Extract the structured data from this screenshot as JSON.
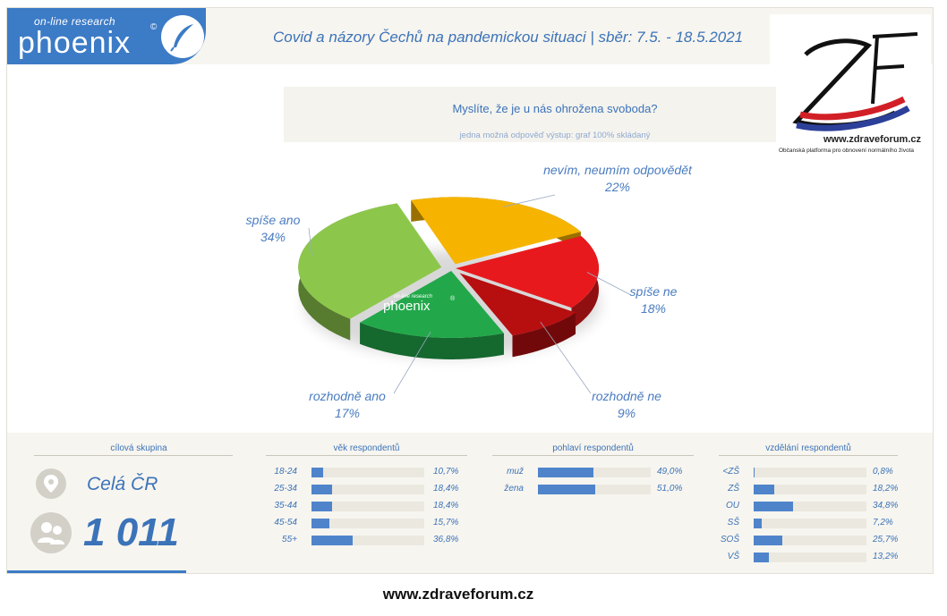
{
  "header": {
    "logo_small": "on-line research",
    "logo_big": "phoenix",
    "logo_copy": "©",
    "survey_title": "Covid a názory Čechů na pandemickou situaci  |  sběr: 7.5. - 18.5.2021"
  },
  "zf_logo": {
    "letters": "ZF",
    "url": "www.zdraveforum.cz",
    "subtitle": "Občanská platforma pro obnovení normálního života"
  },
  "question": {
    "text": "Myslíte, že je u nás ohrožena svoboda?",
    "note": "jedna možná odpověď  výstup: graf 100% skládaný"
  },
  "watermark": {
    "small": "on-line research",
    "big": "phoenix",
    "copy": "®"
  },
  "chart_data": {
    "type": "pie",
    "slices": [
      {
        "label": "nevím, neumím odpovědět",
        "value": 22,
        "value_label": "22%",
        "color": "#f6b400"
      },
      {
        "label": "spíše ne",
        "value": 18,
        "value_label": "18%",
        "color": "#e8191d"
      },
      {
        "label": "rozhodně ne",
        "value": 9,
        "value_label": "9%",
        "color": "#b70e10"
      },
      {
        "label": "rozhodně ano",
        "value": 17,
        "value_label": "17%",
        "color": "#22a84a"
      },
      {
        "label": "spíše ano",
        "value": 34,
        "value_label": "34%",
        "color": "#8cc74b"
      }
    ]
  },
  "target": {
    "title": "cílová skupina",
    "name": "Celá ČR",
    "count": "1 011"
  },
  "age": {
    "title": "věk respondentů",
    "rows": [
      {
        "label": "18-24",
        "value": 10.7,
        "value_label": "10,7%"
      },
      {
        "label": "25-34",
        "value": 18.4,
        "value_label": "18,4%"
      },
      {
        "label": "35-44",
        "value": 18.4,
        "value_label": "18,4%"
      },
      {
        "label": "45-54",
        "value": 15.7,
        "value_label": "15,7%"
      },
      {
        "label": "55+",
        "value": 36.8,
        "value_label": "36,8%"
      }
    ]
  },
  "gender": {
    "title": "pohlaví respondentů",
    "rows": [
      {
        "label": "muž",
        "value": 49.0,
        "value_label": "49,0%"
      },
      {
        "label": "žena",
        "value": 51.0,
        "value_label": "51,0%"
      }
    ]
  },
  "education": {
    "title": "vzdělání respondentů",
    "rows": [
      {
        "label": "<ZŠ",
        "value": 0.8,
        "value_label": "0,8%"
      },
      {
        "label": "ZŠ",
        "value": 18.2,
        "value_label": "18,2%"
      },
      {
        "label": "OU",
        "value": 34.8,
        "value_label": "34,8%"
      },
      {
        "label": "SŠ",
        "value": 7.2,
        "value_label": "7,2%"
      },
      {
        "label": "SOŠ",
        "value": 25.7,
        "value_label": "25,7%"
      },
      {
        "label": "VŠ",
        "value": 13.2,
        "value_label": "13,2%"
      }
    ]
  },
  "footer": {
    "url": "www.zdraveforum.cz"
  }
}
